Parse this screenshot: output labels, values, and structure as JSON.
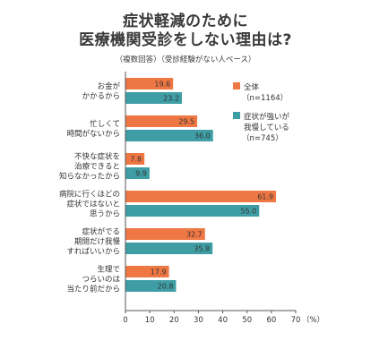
{
  "title": {
    "line1": "症状軽減のために",
    "line2": "医療機関受診をしない理由は?",
    "subtitle": "（複数回答）（受診経験がない人ベース）"
  },
  "colors": {
    "series1": "#ee7743",
    "series2": "#3f9ea5",
    "axis": "#555555"
  },
  "chart_data": {
    "type": "bar",
    "orientation": "horizontal",
    "categories": [
      [
        "お金が",
        "かかるから"
      ],
      [
        "忙しくて",
        "時間がないから"
      ],
      [
        "不快な症状を",
        "治療できると",
        "知らなかったから"
      ],
      [
        "病院に行くほどの",
        "症状ではないと",
        "思うから"
      ],
      [
        "症状がでる",
        "期間だけ我慢",
        "すればいいから"
      ],
      [
        "生理で",
        "つらいのは",
        "当たり前だから"
      ]
    ],
    "series": [
      {
        "name": "全体",
        "name_sub": "（n=1164）",
        "values": [
          19.6,
          29.5,
          7.8,
          61.9,
          32.7,
          17.9
        ]
      },
      {
        "name": "症状が強いが",
        "name_line2": "我慢している",
        "name_sub": "（n=745）",
        "values": [
          23.2,
          36.0,
          9.9,
          55.0,
          35.8,
          20.8
        ]
      }
    ],
    "value_labels": [
      [
        "19.6",
        "29.5",
        "7.8",
        "61.9",
        "32.7",
        "17.9"
      ],
      [
        "23.2",
        "36.0",
        "9.9",
        "55.0",
        "35.8",
        "20.8"
      ]
    ],
    "xlim": [
      0,
      70
    ],
    "xticks": [
      "0",
      "10",
      "20",
      "30",
      "40",
      "50",
      "60",
      "70"
    ],
    "x_unit": "（%）",
    "legend_position": "top-right",
    "grid": false
  }
}
